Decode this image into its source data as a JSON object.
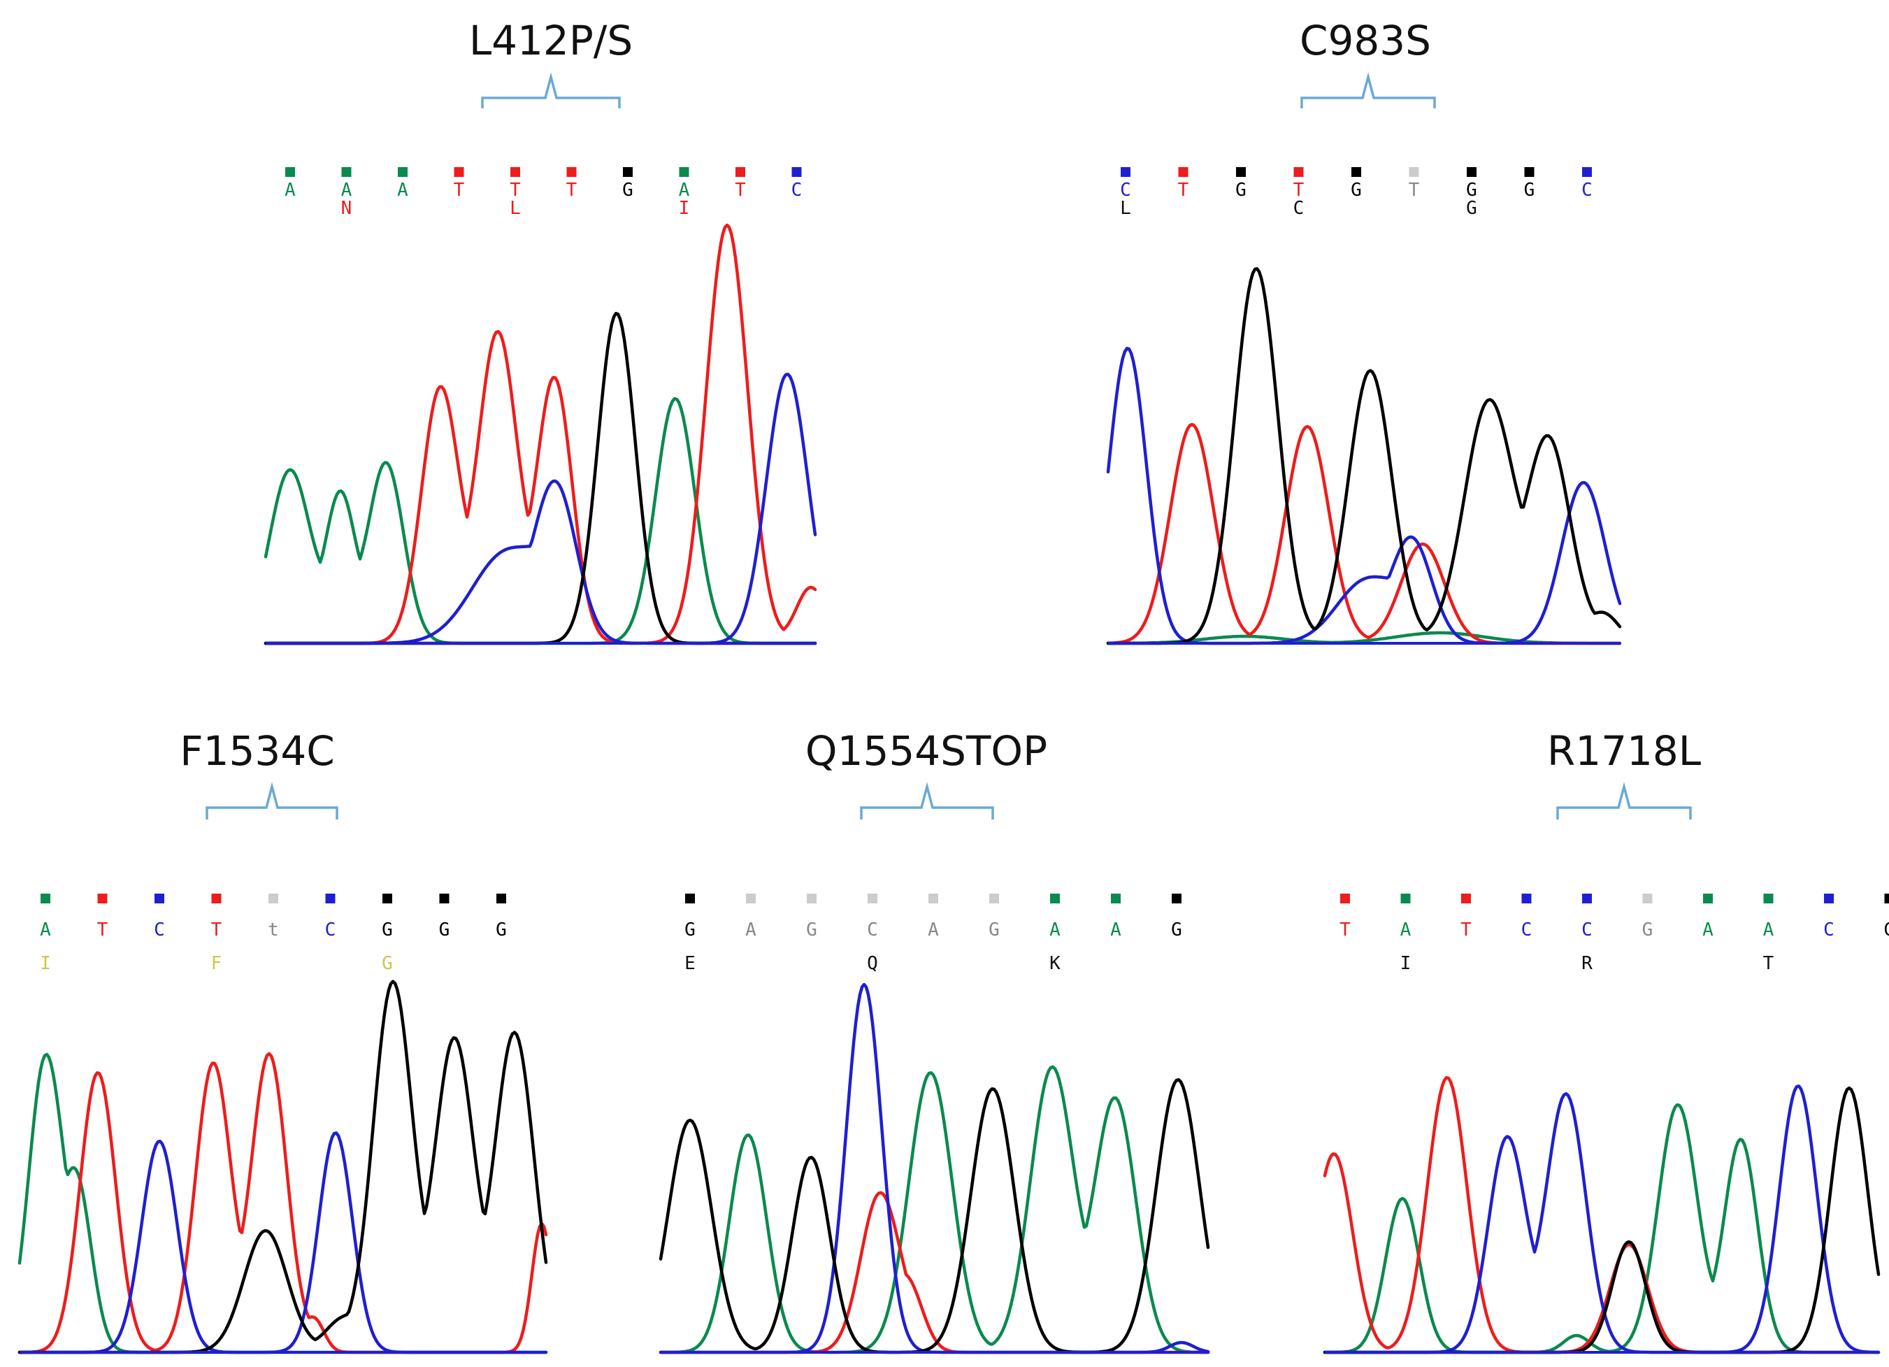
{
  "colors": {
    "A": "#0a8a4e",
    "C": "#1f1fd2",
    "G": "#000000",
    "T": "#ee1c1c",
    "N": "#ee1c1c",
    "faint": "#cccccc",
    "aa_yellow": "#c9c948",
    "bracket": "#6aaad2"
  },
  "panels": [
    {
      "id": "l412",
      "title": "L412P/S",
      "bases": [
        {
          "b": "A",
          "c": "A",
          "aa": ""
        },
        {
          "b": "A",
          "c": "A",
          "aa": "N",
          "aac": "T"
        },
        {
          "b": "A",
          "c": "A",
          "aa": ""
        },
        {
          "b": "T",
          "c": "T",
          "aa": ""
        },
        {
          "b": "T",
          "c": "T",
          "aa": "L",
          "aac": "T"
        },
        {
          "b": "T",
          "c": "T",
          "aa": ""
        },
        {
          "b": "G",
          "c": "G",
          "aa": ""
        },
        {
          "b": "A",
          "c": "A",
          "aa": "I",
          "aac": "T"
        },
        {
          "b": "T",
          "c": "T",
          "aa": ""
        },
        {
          "b": "C",
          "c": "C",
          "aa": ""
        }
      ]
    },
    {
      "id": "c983",
      "title": "C983S",
      "bases": [
        {
          "b": "C",
          "c": "C",
          "aa": "L",
          "aac": "G"
        },
        {
          "b": "T",
          "c": "T",
          "aa": ""
        },
        {
          "b": "G",
          "c": "G",
          "aa": ""
        },
        {
          "b": "T",
          "c": "T",
          "aa": "C",
          "aac": "G"
        },
        {
          "b": "G",
          "c": "G",
          "aa": ""
        },
        {
          "b": "T",
          "c": "T",
          "aa": "",
          "faint": true
        },
        {
          "b": "G",
          "c": "G",
          "aa": "G",
          "aac": "G"
        },
        {
          "b": "G",
          "c": "G",
          "aa": ""
        },
        {
          "b": "C",
          "c": "C",
          "aa": ""
        }
      ]
    },
    {
      "id": "f1534",
      "title": "F1534C",
      "bases": [
        {
          "b": "A",
          "c": "A",
          "aa": "I",
          "aac": "Y"
        },
        {
          "b": "T",
          "c": "T",
          "aa": ""
        },
        {
          "b": "C",
          "c": "C",
          "aa": ""
        },
        {
          "b": "T",
          "c": "T",
          "aa": "F",
          "aac": "Y"
        },
        {
          "b": "t",
          "c": "T",
          "aa": "",
          "faint": true
        },
        {
          "b": "C",
          "c": "C",
          "aa": ""
        },
        {
          "b": "G",
          "c": "G",
          "aa": "G",
          "aac": "Y"
        },
        {
          "b": "G",
          "c": "G",
          "aa": ""
        },
        {
          "b": "G",
          "c": "G",
          "aa": ""
        }
      ]
    },
    {
      "id": "q1554",
      "title": "Q1554STOP",
      "bases": [
        {
          "b": "G",
          "c": "G",
          "aa": "E",
          "aac": "G"
        },
        {
          "b": "A",
          "c": "A",
          "aa": "",
          "faint": true
        },
        {
          "b": "G",
          "c": "G",
          "aa": "",
          "faint": true
        },
        {
          "b": "C",
          "c": "C",
          "aa": "Q",
          "aac": "G",
          "faint": true
        },
        {
          "b": "A",
          "c": "A",
          "aa": "",
          "faint": true
        },
        {
          "b": "G",
          "c": "G",
          "aa": "",
          "faint": true
        },
        {
          "b": "A",
          "c": "A",
          "aa": "K",
          "aac": "G"
        },
        {
          "b": "A",
          "c": "A",
          "aa": ""
        },
        {
          "b": "G",
          "c": "G",
          "aa": ""
        }
      ]
    },
    {
      "id": "r1718",
      "title": "R1718L",
      "bases": [
        {
          "b": "T",
          "c": "T",
          "aa": ""
        },
        {
          "b": "A",
          "c": "A",
          "aa": "I",
          "aac": "G"
        },
        {
          "b": "T",
          "c": "T",
          "aa": ""
        },
        {
          "b": "C",
          "c": "C",
          "aa": ""
        },
        {
          "b": "C",
          "c": "C",
          "aa": "R",
          "aac": "G"
        },
        {
          "b": "G",
          "c": "G",
          "aa": "",
          "faint": true
        },
        {
          "b": "A",
          "c": "A",
          "aa": ""
        },
        {
          "b": "A",
          "c": "A",
          "aa": "T",
          "aac": "G"
        },
        {
          "b": "C",
          "c": "C",
          "aa": ""
        },
        {
          "b": "G",
          "c": "G",
          "aa": ""
        }
      ]
    }
  ]
}
